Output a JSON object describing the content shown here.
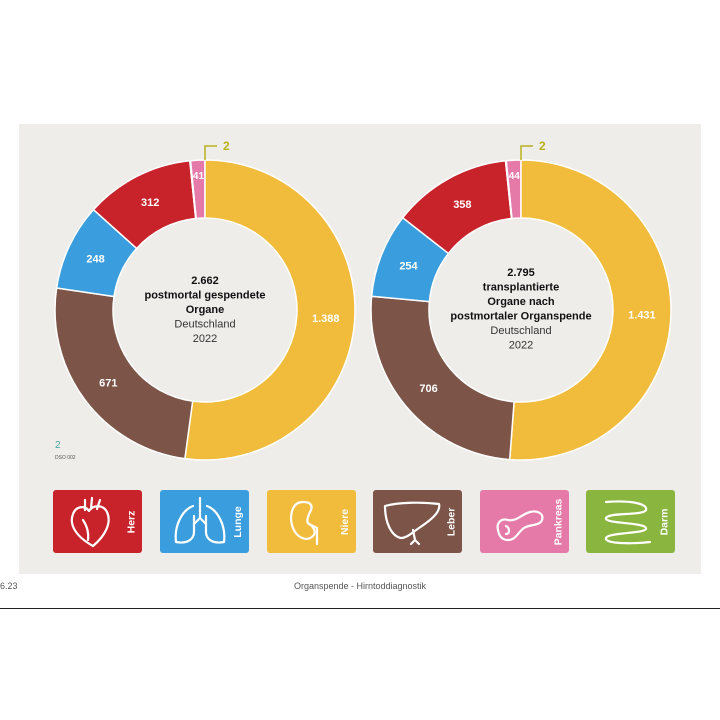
{
  "colors": {
    "Herz": "#c8222a",
    "Lunge": "#3a9ddd",
    "Niere": "#f1bb3c",
    "Leber": "#7c5548",
    "Pankreas": "#e57aa8",
    "Darm": "#8ab53f",
    "callout": "#b8b21c"
  },
  "chart_data": [
    {
      "type": "donut",
      "center": {
        "total": "2.662",
        "lines": [
          "postmortal gespendete",
          "Organe"
        ],
        "region": "Deutschland",
        "year": "2022"
      },
      "slices": [
        {
          "organ": "Pankreas",
          "value": 41,
          "label": "41"
        },
        {
          "organ": "Niere",
          "value": 1388,
          "label": "1.388"
        },
        {
          "organ": "Leber",
          "value": 671,
          "label": "671"
        },
        {
          "organ": "Lunge",
          "value": 248,
          "label": "248"
        },
        {
          "organ": "Herz",
          "value": 312,
          "label": "312"
        },
        {
          "organ": "Darm",
          "value": 2,
          "label": "2"
        }
      ]
    },
    {
      "type": "donut",
      "center": {
        "total": "2.795",
        "lines": [
          "transplantierte",
          "Organe nach",
          "postmortaler Organspende"
        ],
        "region": "Deutschland",
        "year": "2022"
      },
      "slices": [
        {
          "organ": "Pankreas",
          "value": 44,
          "label": "44"
        },
        {
          "organ": "Niere",
          "value": 1431,
          "label": "1.431"
        },
        {
          "organ": "Leber",
          "value": 706,
          "label": "706"
        },
        {
          "organ": "Lunge",
          "value": 254,
          "label": "254"
        },
        {
          "organ": "Herz",
          "value": 358,
          "label": "358"
        },
        {
          "organ": "Darm",
          "value": 2,
          "label": "2"
        }
      ]
    }
  ],
  "notes": {
    "number": "2",
    "source": "DSO 002"
  },
  "legend": [
    {
      "organ": "Herz",
      "label": "Herz",
      "icon": "heart-icon"
    },
    {
      "organ": "Lunge",
      "label": "Lunge",
      "icon": "lungs-icon"
    },
    {
      "organ": "Niere",
      "label": "Niere",
      "icon": "kidney-icon"
    },
    {
      "organ": "Leber",
      "label": "Leber",
      "icon": "liver-icon"
    },
    {
      "organ": "Pankreas",
      "label": "Pankreas",
      "icon": "pancreas-icon"
    },
    {
      "organ": "Darm",
      "label": "Darm",
      "icon": "intestine-icon"
    }
  ],
  "footer": {
    "page": "6.23",
    "title": "Organspende - Hirntoddiagnostik"
  }
}
